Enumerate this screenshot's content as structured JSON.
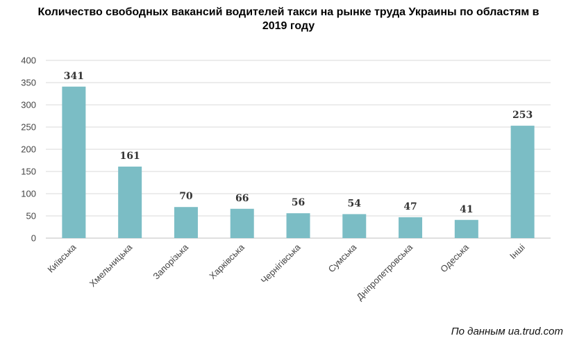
{
  "chart_data": {
    "type": "bar",
    "title_line1": "Количество свободных вакансий водителей такси на рынке труда Украины по областям в",
    "title_line2": "2019 году",
    "categories": [
      "Київська",
      "Хмельницька",
      "Запорізька",
      "Харківська",
      "Чернігівська",
      "Сумська",
      "Дніпропетровська",
      "Одеська",
      "Інші"
    ],
    "values": [
      341,
      161,
      70,
      66,
      56,
      54,
      47,
      41,
      253
    ],
    "ylim": [
      0,
      400
    ],
    "yticks": [
      0,
      50,
      100,
      150,
      200,
      250,
      300,
      350,
      400
    ],
    "grid": true,
    "bar_color": "#7bbdc5",
    "data_labels": true
  },
  "source": "По данным ua.trud.com"
}
